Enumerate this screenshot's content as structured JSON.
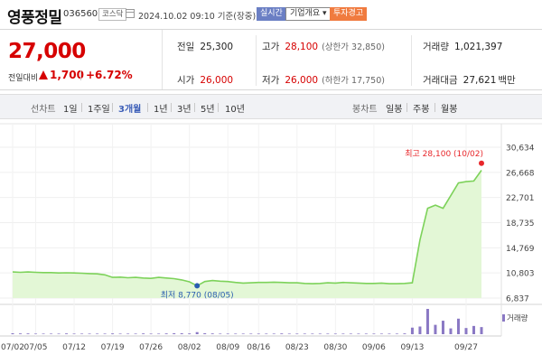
{
  "header": {
    "stock_name": "영풍정밀",
    "stock_code": "036560",
    "market": "코스닥",
    "datetime": "2024.10.02 09:10 기준(장중)",
    "btn_realtime": "실시간",
    "btn_overview": "기업개요 ▾",
    "btn_warning": "투자경고",
    "calendar_icon": "calendar-icon"
  },
  "summary": {
    "current_price": "27,000",
    "prev_label": "전일대비",
    "change_value": "1,700",
    "change_pct": "+6.72%",
    "prev_close_label": "전일",
    "prev_close": "25,300",
    "high_label": "고가",
    "high": "28,100",
    "high_sub": "(상한가 32,850)",
    "volume_label": "거래량",
    "volume": "1,021,397",
    "open_label": "시가",
    "open": "26,000",
    "low_label": "저가",
    "low": "26,000",
    "low_sub": "(하한가 17,750)",
    "amount_label": "거래대금",
    "amount": "27,621",
    "amount_unit": "백만"
  },
  "tabs": {
    "line_label": "선차트",
    "line_periods": [
      "1일",
      "1주일",
      "3개월",
      "1년",
      "3년",
      "5년",
      "10년"
    ],
    "active_period": "3개월",
    "candle_label": "봉차트",
    "candle_periods": [
      "일봉",
      "주봉",
      "월봉"
    ]
  },
  "chart_data": {
    "type": "area",
    "y_ticks": [
      "30,634",
      "26,668",
      "22,701",
      "18,735",
      "14,769",
      "10,803",
      "6,837"
    ],
    "ylim": [
      6837,
      30634
    ],
    "x_ticks": [
      "07/02",
      "07/05",
      "07/12",
      "07/19",
      "07/26",
      "08/02",
      "08/09",
      "08/16",
      "08/23",
      "08/30",
      "09/06",
      "09/13",
      "09/27"
    ],
    "series": [
      {
        "x": [
          "07/02",
          "07/03",
          "07/04",
          "07/05",
          "07/08",
          "07/09",
          "07/10",
          "07/11",
          "07/12",
          "07/15",
          "07/16",
          "07/17",
          "07/18",
          "07/19",
          "07/22",
          "07/23",
          "07/24",
          "07/25",
          "07/26",
          "07/29",
          "07/30",
          "07/31",
          "08/01",
          "08/02",
          "08/05",
          "08/06",
          "08/07",
          "08/08",
          "08/09",
          "08/12",
          "08/13",
          "08/14",
          "08/16",
          "08/19",
          "08/20",
          "08/21",
          "08/22",
          "08/23",
          "08/26",
          "08/27",
          "08/28",
          "08/29",
          "08/30",
          "09/02",
          "09/03",
          "09/04",
          "09/05",
          "09/06",
          "09/09",
          "09/10",
          "09/11",
          "09/12",
          "09/13",
          "09/19",
          "09/20",
          "09/23",
          "09/24",
          "09/25",
          "09/26",
          "09/27",
          "09/30",
          "10/02"
        ],
        "values": [
          10950,
          10900,
          10950,
          10900,
          10850,
          10850,
          10800,
          10820,
          10800,
          10750,
          10700,
          10650,
          10500,
          10100,
          10150,
          10050,
          10100,
          10000,
          9950,
          10100,
          10000,
          9900,
          9700,
          9400,
          8770,
          9450,
          9600,
          9500,
          9450,
          9300,
          9200,
          9250,
          9300,
          9300,
          9350,
          9300,
          9250,
          9250,
          9150,
          9100,
          9150,
          9250,
          9200,
          9300,
          9250,
          9200,
          9150,
          9150,
          9200,
          9100,
          9100,
          9150,
          9250,
          16000,
          21000,
          21500,
          21000,
          23000,
          25000,
          25200,
          25300,
          27000
        ]
      }
    ],
    "volume": [
      0.5,
      0.4,
      0.4,
      0.3,
      0.3,
      0.3,
      0.3,
      0.4,
      0.3,
      0.3,
      0.3,
      0.3,
      0.3,
      0.4,
      0.3,
      0.3,
      0.3,
      0.4,
      0.3,
      0.3,
      0.4,
      0.5,
      0.5,
      0.4,
      1.1,
      0.5,
      0.4,
      0.3,
      0.3,
      0.3,
      0.3,
      0.3,
      0.3,
      0.3,
      0.3,
      0.4,
      0.3,
      0.3,
      0.3,
      0.3,
      0.3,
      0.3,
      0.3,
      0.3,
      0.3,
      0.3,
      0.3,
      0.3,
      0.3,
      0.3,
      0.3,
      0.4,
      3.5,
      4.1,
      13.5,
      5.0,
      7.2,
      3.1,
      8.3,
      3.3,
      4.4,
      3.8
    ],
    "volume_legend": "거래량",
    "max_label": "최고 28,100 (10/02)",
    "min_label": "최저 8,770 (08/05)",
    "colors": {
      "line": "#7dd25a",
      "fill": "#e3f7d6",
      "max_dot": "#e8272b",
      "min_dot": "#2a5db0",
      "volume": "#8a78c4"
    }
  }
}
